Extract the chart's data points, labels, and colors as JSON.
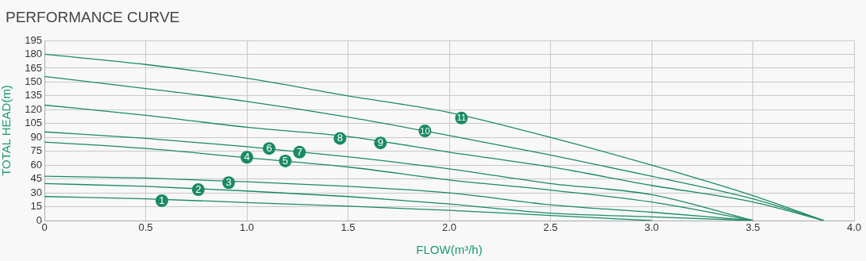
{
  "chart_data": {
    "type": "line",
    "title": "PERFORMANCE CURVE",
    "xlabel": "FLOW(m³/h)",
    "ylabel": "TOTAL HEAD(m)",
    "xlim": [
      0,
      4
    ],
    "xticks": [
      {
        "value": 0,
        "label": "0"
      },
      0.5,
      {
        "value": 1,
        "label": "1.0"
      },
      1.5,
      {
        "value": 2,
        "label": "2.0"
      },
      2.5,
      {
        "value": 3,
        "label": "3.0"
      },
      3.5,
      {
        "value": 4,
        "label": "4.0"
      }
    ],
    "ylim": [
      0,
      195
    ],
    "yticks": [
      0,
      15,
      30,
      45,
      60,
      75,
      90,
      105,
      120,
      135,
      150,
      165,
      180,
      195
    ],
    "grid": true,
    "legend": false,
    "marker": "none",
    "line_style": "solid",
    "series": [
      {
        "color": "#1a8a66",
        "x": [
          0,
          0.5,
          1,
          1.5,
          2,
          2.5,
          3
        ],
        "values": [
          26,
          23.5,
          19.5,
          15.5,
          11,
          5.5,
          0
        ]
      },
      {
        "color": "#1a8a66",
        "x": [
          0,
          0.5,
          1,
          1.5,
          2,
          2.5,
          3,
          3.5
        ],
        "values": [
          40,
          37,
          32,
          26,
          18,
          8,
          4,
          0
        ]
      },
      {
        "color": "#1a8a66",
        "x": [
          0,
          0.5,
          1,
          1.5,
          2,
          2.5,
          3,
          3.5
        ],
        "values": [
          48,
          46,
          42,
          37,
          30,
          17,
          9,
          0
        ]
      },
      {
        "color": "#1a8a66",
        "x": [
          0,
          0.5,
          1,
          1.5,
          2,
          2.5,
          3,
          3.5
        ],
        "values": [
          85,
          78,
          68,
          58,
          44,
          33,
          20,
          0
        ]
      },
      {
        "color": "#1a8a66",
        "x": [
          0,
          0.5,
          1,
          1.5,
          2,
          2.5,
          3,
          3.5
        ],
        "values": [
          96,
          89,
          80,
          69,
          56,
          40,
          28,
          0
        ]
      },
      {
        "color": "#1a8a66",
        "x": [
          0,
          0.5,
          1,
          1.5,
          2,
          2.5,
          3,
          3.5,
          3.85
        ],
        "values": [
          125,
          114,
          101,
          91,
          74,
          58,
          38,
          20,
          0
        ]
      },
      {
        "color": "#1a8a66",
        "x": [
          0,
          0.5,
          1,
          1.5,
          2,
          2.5,
          3,
          3.5,
          3.85
        ],
        "values": [
          156,
          143,
          129,
          112,
          92,
          71,
          48,
          23.5,
          0
        ]
      },
      {
        "color": "#1a8a66",
        "x": [
          0,
          0.5,
          1,
          1.5,
          2,
          2.5,
          3,
          3.5,
          3.85
        ],
        "values": [
          180,
          169,
          154,
          135,
          117,
          90,
          60,
          27,
          0
        ]
      }
    ],
    "annotations": [
      {
        "text": "1",
        "x": 0.58,
        "y": 21.5
      },
      {
        "text": "2",
        "x": 0.76,
        "y": 33.5
      },
      {
        "text": "3",
        "x": 0.91,
        "y": 41
      },
      {
        "text": "4",
        "x": 1.0,
        "y": 68.5
      },
      {
        "text": "5",
        "x": 1.19,
        "y": 64.5
      },
      {
        "text": "6",
        "x": 1.11,
        "y": 78
      },
      {
        "text": "7",
        "x": 1.26,
        "y": 74
      },
      {
        "text": "8",
        "x": 1.46,
        "y": 89
      },
      {
        "text": "9",
        "x": 1.66,
        "y": 84
      },
      {
        "text": "10",
        "x": 1.88,
        "y": 97
      },
      {
        "text": "11",
        "x": 2.06,
        "y": 111
      }
    ]
  }
}
